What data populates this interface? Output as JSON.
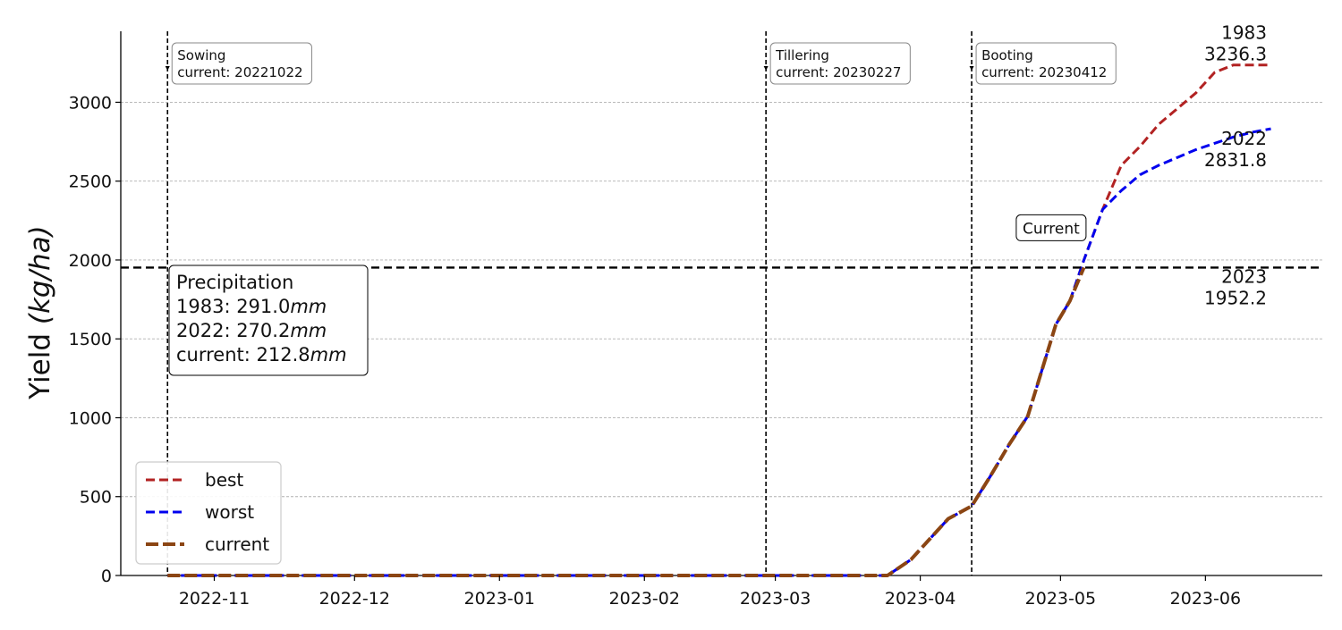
{
  "chart_data": {
    "type": "line",
    "ylabel": "Yield (kg/ha)",
    "ylabel_prefix": "Yield ",
    "ylabel_unit": "(kg/ha)",
    "xlabel": "",
    "xlim": [
      "2022-10-12",
      "2023-06-26"
    ],
    "ylim": [
      0,
      3450
    ],
    "grid": "horizontal dashed",
    "legend_position": "lower-left",
    "x_ticks": [
      {
        "date": "2022-11-01",
        "label": "2022-11"
      },
      {
        "date": "2022-12-01",
        "label": "2022-12"
      },
      {
        "date": "2023-01-01",
        "label": "2023-01"
      },
      {
        "date": "2023-02-01",
        "label": "2023-02"
      },
      {
        "date": "2023-03-01",
        "label": "2023-03"
      },
      {
        "date": "2023-04-01",
        "label": "2023-04"
      },
      {
        "date": "2023-05-01",
        "label": "2023-05"
      },
      {
        "date": "2023-06-01",
        "label": "2023-06"
      }
    ],
    "y_ticks": [
      {
        "value": 0,
        "label": "0"
      },
      {
        "value": 500,
        "label": "500"
      },
      {
        "value": 1000,
        "label": "1000"
      },
      {
        "value": 1500,
        "label": "1500"
      },
      {
        "value": 2000,
        "label": "2000"
      },
      {
        "value": 2500,
        "label": "2500"
      },
      {
        "value": 3000,
        "label": "3000"
      }
    ],
    "series": [
      {
        "name": "best",
        "color": "#b22222",
        "points": [
          [
            "2022-10-22",
            0
          ],
          [
            "2023-03-25",
            0
          ],
          [
            "2023-03-30",
            100
          ],
          [
            "2023-04-03",
            230
          ],
          [
            "2023-04-07",
            360
          ],
          [
            "2023-04-12",
            440
          ],
          [
            "2023-04-16",
            630
          ],
          [
            "2023-04-20",
            830
          ],
          [
            "2023-04-24",
            1010
          ],
          [
            "2023-04-27",
            1300
          ],
          [
            "2023-04-30",
            1590
          ],
          [
            "2023-05-03",
            1740
          ],
          [
            "2023-05-06",
            2000
          ],
          [
            "2023-05-10",
            2320
          ],
          [
            "2023-05-14",
            2600
          ],
          [
            "2023-05-18",
            2720
          ],
          [
            "2023-05-22",
            2860
          ],
          [
            "2023-05-26",
            2960
          ],
          [
            "2023-05-30",
            3060
          ],
          [
            "2023-06-03",
            3190
          ],
          [
            "2023-06-07",
            3236.3
          ],
          [
            "2023-06-15",
            3236.3
          ]
        ]
      },
      {
        "name": "worst",
        "color": "#0000ee",
        "points": [
          [
            "2022-10-22",
            0
          ],
          [
            "2023-03-25",
            0
          ],
          [
            "2023-03-30",
            100
          ],
          [
            "2023-04-03",
            230
          ],
          [
            "2023-04-07",
            360
          ],
          [
            "2023-04-12",
            440
          ],
          [
            "2023-04-16",
            630
          ],
          [
            "2023-04-20",
            830
          ],
          [
            "2023-04-24",
            1010
          ],
          [
            "2023-04-27",
            1300
          ],
          [
            "2023-04-30",
            1590
          ],
          [
            "2023-05-03",
            1740
          ],
          [
            "2023-05-06",
            2000
          ],
          [
            "2023-05-10",
            2320
          ],
          [
            "2023-05-14",
            2440
          ],
          [
            "2023-05-18",
            2540
          ],
          [
            "2023-05-22",
            2600
          ],
          [
            "2023-05-26",
            2650
          ],
          [
            "2023-05-30",
            2700
          ],
          [
            "2023-06-03",
            2740
          ],
          [
            "2023-06-07",
            2780
          ],
          [
            "2023-06-11",
            2810
          ],
          [
            "2023-06-15",
            2831.8
          ]
        ]
      },
      {
        "name": "current",
        "color": "#8b4513",
        "points": [
          [
            "2022-10-22",
            0
          ],
          [
            "2023-03-25",
            0
          ],
          [
            "2023-03-30",
            100
          ],
          [
            "2023-04-03",
            230
          ],
          [
            "2023-04-07",
            360
          ],
          [
            "2023-04-12",
            440
          ],
          [
            "2023-04-16",
            630
          ],
          [
            "2023-04-20",
            830
          ],
          [
            "2023-04-24",
            1010
          ],
          [
            "2023-04-27",
            1300
          ],
          [
            "2023-04-30",
            1590
          ],
          [
            "2023-05-03",
            1740
          ],
          [
            "2023-05-06",
            1952.2
          ]
        ]
      }
    ],
    "current_level": {
      "value": 1952.2,
      "year": "2023",
      "label": "1952.2"
    },
    "end_labels": [
      {
        "year": "1983",
        "value": 3236.3,
        "text": "3236.3"
      },
      {
        "year": "2022",
        "value": 2831.8,
        "text": "2831.8"
      },
      {
        "year": "2023",
        "value": 1952.2,
        "text": "1952.2"
      }
    ],
    "stages": [
      {
        "date": "2022-10-22",
        "name": "Sowing",
        "note": "current: 20221022"
      },
      {
        "date": "2023-02-27",
        "name": "Tillering",
        "note": "current: 20230227"
      },
      {
        "date": "2023-04-12",
        "name": "Booting",
        "note": "current: 20230412"
      }
    ],
    "current_marker": {
      "date": "2023-04-29",
      "value": 2190,
      "label": "Current"
    },
    "precipitation": {
      "title": "Precipitation",
      "rows": [
        {
          "label": "1983: ",
          "value": "291.0",
          "unit": "mm"
        },
        {
          "label": "2022: ",
          "value": "270.2",
          "unit": "mm"
        },
        {
          "label": "current: ",
          "value": "212.8",
          "unit": "mm"
        }
      ]
    },
    "legend": [
      {
        "label": "best",
        "color": "#b22222"
      },
      {
        "label": "worst",
        "color": "#0000ee"
      },
      {
        "label": "current",
        "color": "#8b4513"
      }
    ]
  }
}
